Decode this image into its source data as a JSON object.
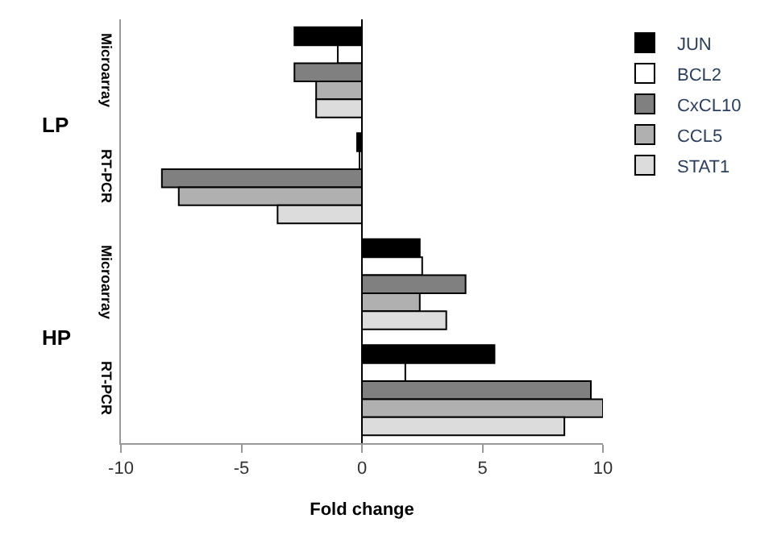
{
  "chart_data": {
    "type": "bar",
    "orientation": "horizontal",
    "xlabel": "Fold change",
    "categories": [
      "Microarray",
      "RT-PCR",
      "Microarray",
      "RT-PCR"
    ],
    "annotations": [
      "LP",
      "HP"
    ],
    "series": [
      {
        "name": "JUN",
        "color": "#000000",
        "values": [
          -2.8,
          -0.2,
          2.4,
          5.5
        ]
      },
      {
        "name": "BCL2",
        "color": "#ffffff",
        "values": [
          -1.0,
          -0.1,
          2.5,
          1.8
        ]
      },
      {
        "name": "CxCL10",
        "color": "#808080",
        "values": [
          -2.8,
          -8.3,
          4.3,
          9.5
        ]
      },
      {
        "name": "CCL5",
        "color": "#b0b0b0",
        "values": [
          -1.9,
          -7.6,
          2.4,
          10.0
        ]
      },
      {
        "name": "STAT1",
        "color": "#dcdcdc",
        "values": [
          -1.9,
          -3.5,
          3.5,
          8.4
        ]
      }
    ],
    "xlim": [
      -10,
      10
    ],
    "xticks": [
      -10,
      -5,
      0,
      5,
      10
    ],
    "ref_lines": [
      {
        "axis": "x",
        "value": 0,
        "color": "#000000"
      }
    ],
    "legend": "top right"
  }
}
